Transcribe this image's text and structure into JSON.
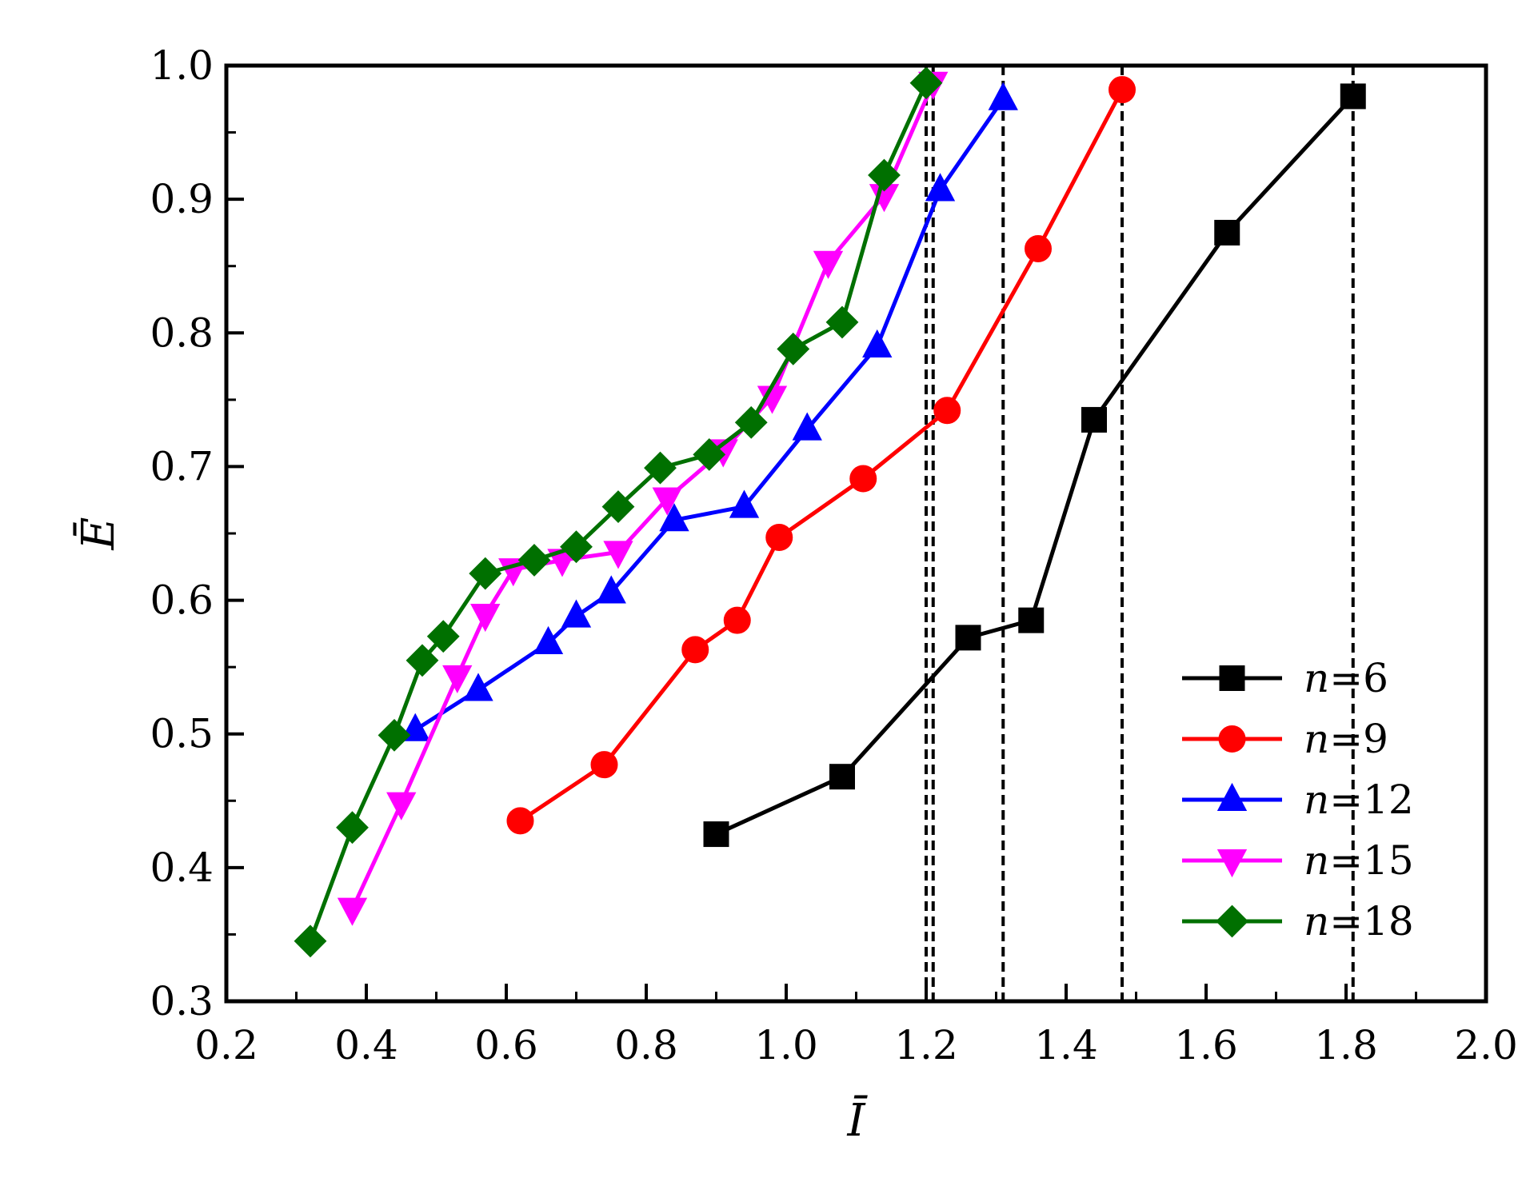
{
  "chart_data": {
    "type": "line",
    "xlabel": "Ī",
    "ylabel": "Ē",
    "xlim": [
      0.2,
      2.0
    ],
    "ylim": [
      0.3,
      1.0
    ],
    "xticks": [
      "0.2",
      "0.4",
      "0.6",
      "0.8",
      "1.0",
      "1.2",
      "1.4",
      "1.6",
      "1.8",
      "2.0"
    ],
    "yticks": [
      "0.3",
      "0.4",
      "0.5",
      "0.6",
      "0.7",
      "0.8",
      "0.9",
      "1.0"
    ],
    "grid": false,
    "legend_position": "bottom-right",
    "series": [
      {
        "name": "n=6",
        "label_var": "n",
        "label_val": "=6",
        "color": "#000000",
        "marker": "square",
        "x": [
          0.9,
          1.08,
          1.26,
          1.35,
          1.44,
          1.63,
          1.81
        ],
        "y": [
          0.425,
          0.468,
          0.572,
          0.585,
          0.735,
          0.875,
          0.977
        ]
      },
      {
        "name": "n=9",
        "label_var": "n",
        "label_val": "=9",
        "color": "#ff0000",
        "marker": "circle",
        "x": [
          0.62,
          0.74,
          0.87,
          0.93,
          0.99,
          1.11,
          1.23,
          1.36,
          1.48
        ],
        "y": [
          0.435,
          0.477,
          0.563,
          0.585,
          0.647,
          0.691,
          0.742,
          0.863,
          0.982
        ]
      },
      {
        "name": "n=12",
        "label_var": "n",
        "label_val": "=12",
        "color": "#0000ff",
        "marker": "triangle-up",
        "x": [
          0.47,
          0.56,
          0.66,
          0.7,
          0.75,
          0.84,
          0.94,
          1.03,
          1.13,
          1.22,
          1.31
        ],
        "y": [
          0.503,
          0.533,
          0.568,
          0.588,
          0.606,
          0.66,
          0.67,
          0.728,
          0.79,
          0.907,
          0.975
        ]
      },
      {
        "name": "n=15",
        "label_var": "n",
        "label_val": "=15",
        "color": "#ff00ff",
        "marker": "triangle-down",
        "x": [
          0.38,
          0.45,
          0.53,
          0.57,
          0.61,
          0.68,
          0.76,
          0.83,
          0.91,
          0.98,
          1.06,
          1.14,
          1.21
        ],
        "y": [
          0.369,
          0.448,
          0.543,
          0.589,
          0.623,
          0.63,
          0.636,
          0.676,
          0.712,
          0.752,
          0.853,
          0.903,
          0.987
        ]
      },
      {
        "name": "n=18",
        "label_var": "n",
        "label_val": "=18",
        "color": "#007000",
        "marker": "diamond",
        "x": [
          0.32,
          0.38,
          0.44,
          0.48,
          0.51,
          0.57,
          0.64,
          0.7,
          0.76,
          0.82,
          0.89,
          0.95,
          1.01,
          1.08,
          1.14,
          1.2
        ],
        "y": [
          0.345,
          0.43,
          0.499,
          0.555,
          0.573,
          0.62,
          0.63,
          0.64,
          0.67,
          0.699,
          0.709,
          0.733,
          0.788,
          0.808,
          0.918,
          0.987
        ]
      }
    ],
    "reference_lines": [
      {
        "type": "vertical-dashed",
        "x": 1.2
      },
      {
        "type": "vertical-dashed",
        "x": 1.21
      },
      {
        "type": "vertical-dashed",
        "x": 1.31
      },
      {
        "type": "vertical-dashed",
        "x": 1.48
      },
      {
        "type": "vertical-dashed",
        "x": 1.81
      }
    ]
  }
}
